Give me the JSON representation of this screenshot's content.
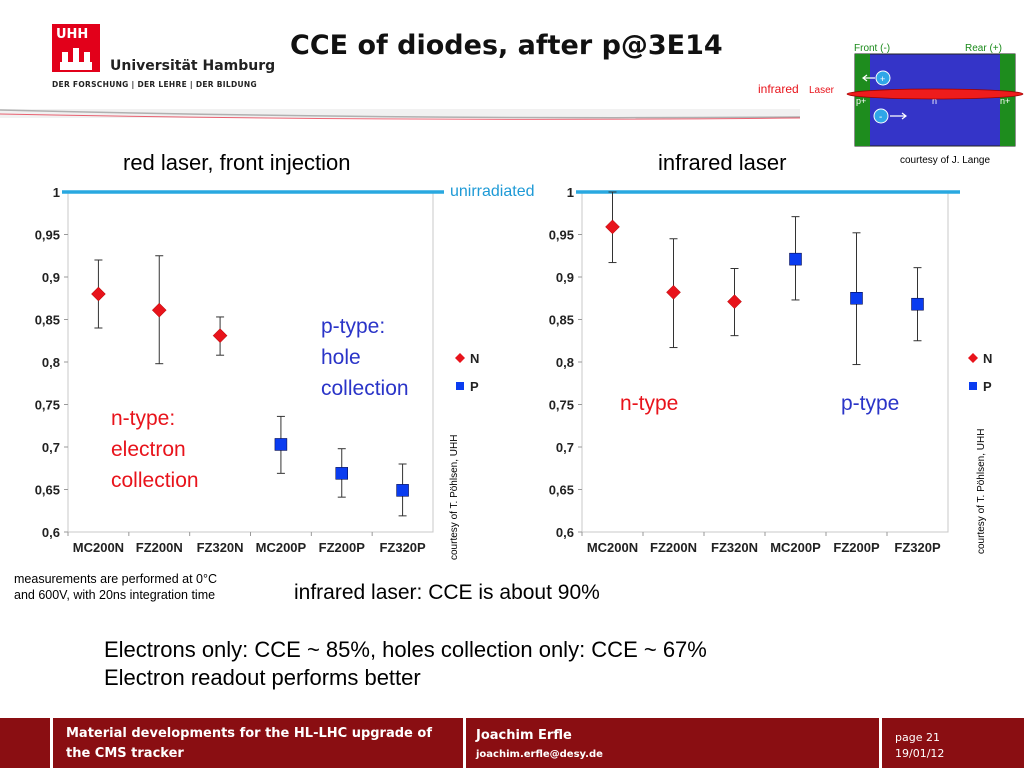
{
  "header": {
    "logo_mark": "UHH",
    "university": "Universität Hamburg",
    "tagline": "DER FORSCHUNG | DER LEHRE | DER BILDUNG",
    "title": "CCE of diodes, after p@3E14"
  },
  "diagram": {
    "front_label": "Front (-)",
    "rear_label": "Rear (+)",
    "p_plus": "p+",
    "n_label": "n",
    "n_plus": "n+",
    "plus_sign": "+",
    "minus_sign": "-",
    "infrared_word": "infrared",
    "laser_word": "Laser",
    "courtesy": "courtesy of J. Lange"
  },
  "unirradiated_label": "unirradiated",
  "chart_data": [
    {
      "type": "scatter",
      "title": "red laser, front injection",
      "categories": [
        "MC200N",
        "FZ200N",
        "FZ320N",
        "MC200P",
        "FZ200P",
        "FZ320P"
      ],
      "ylim": [
        0.6,
        1.0
      ],
      "yticks": [
        "0,6",
        "0,65",
        "0,7",
        "0,75",
        "0,8",
        "0,85",
        "0,9",
        "0,95",
        "1"
      ],
      "grid": false,
      "legend_position": "right",
      "reference_line": 1.0,
      "series": [
        {
          "name": "N",
          "color": "#e8131b",
          "marker": "diamond",
          "points": [
            {
              "x": "MC200N",
              "y": 0.88,
              "lo": 0.84,
              "hi": 0.92
            },
            {
              "x": "FZ200N",
              "y": 0.861,
              "lo": 0.798,
              "hi": 0.925
            },
            {
              "x": "FZ320N",
              "y": 0.831,
              "lo": 0.808,
              "hi": 0.853
            }
          ]
        },
        {
          "name": "P",
          "color": "#0a3cf0",
          "marker": "square",
          "points": [
            {
              "x": "MC200P",
              "y": 0.703,
              "lo": 0.669,
              "hi": 0.736
            },
            {
              "x": "FZ200P",
              "y": 0.669,
              "lo": 0.641,
              "hi": 0.698
            },
            {
              "x": "FZ320P",
              "y": 0.649,
              "lo": 0.619,
              "hi": 0.68
            }
          ]
        }
      ],
      "annotations": [
        {
          "text": "p-type:\nhole\ncollection",
          "color": "#2a34c8"
        },
        {
          "text": "n-type:\nelectron\ncollection",
          "color": "#e8131b"
        }
      ],
      "courtesy": "courtesy of T. Pöhlsen, UHH"
    },
    {
      "type": "scatter",
      "title": "infrared laser",
      "categories": [
        "MC200N",
        "FZ200N",
        "FZ320N",
        "MC200P",
        "FZ200P",
        "FZ320P"
      ],
      "ylim": [
        0.6,
        1.0
      ],
      "yticks": [
        "0,6",
        "0,65",
        "0,7",
        "0,75",
        "0,8",
        "0,85",
        "0,9",
        "0,95",
        "1"
      ],
      "grid": false,
      "legend_position": "right",
      "reference_line": 1.0,
      "series": [
        {
          "name": "N",
          "color": "#e8131b",
          "marker": "diamond",
          "points": [
            {
              "x": "MC200N",
              "y": 0.959,
              "lo": 0.917,
              "hi": 1.0
            },
            {
              "x": "FZ200N",
              "y": 0.882,
              "lo": 0.817,
              "hi": 0.945
            },
            {
              "x": "FZ320N",
              "y": 0.871,
              "lo": 0.831,
              "hi": 0.91
            }
          ]
        },
        {
          "name": "P",
          "color": "#0a3cf0",
          "marker": "square",
          "points": [
            {
              "x": "MC200P",
              "y": 0.921,
              "lo": 0.873,
              "hi": 0.971
            },
            {
              "x": "FZ200P",
              "y": 0.875,
              "lo": 0.797,
              "hi": 0.952
            },
            {
              "x": "FZ320P",
              "y": 0.868,
              "lo": 0.825,
              "hi": 0.911
            }
          ]
        }
      ],
      "annotations": [
        {
          "text": "n-type",
          "color": "#e8131b"
        },
        {
          "text": "p-type",
          "color": "#2a34c8"
        }
      ],
      "courtesy": "courtesy of T. Pöhlsen, UHH"
    }
  ],
  "notes": {
    "measurement_line1": "measurements are performed at 0°C",
    "measurement_line2": "and 600V, with 20ns integration time",
    "infrared_cce": "infrared laser: CCE is about 90%",
    "summary_line1": "Electrons only: CCE ~ 85%, holes collection only: CCE ~ 67%",
    "summary_line2": "Electron readout performs better"
  },
  "footer": {
    "talk_line1": "Material developments for the HL-LHC upgrade of",
    "talk_line2": "the CMS tracker",
    "author": "Joachim Erfle",
    "email": "joachim.erfle@desy.de",
    "page_label": "page",
    "page_number": "21",
    "date": "19/01/12"
  },
  "colors": {
    "uhh_red": "#e2001a",
    "footer_red": "#8a0e12",
    "unirradiated_line": "#29a8e0",
    "n_series": "#e8131b",
    "p_series": "#0a3cf0"
  }
}
